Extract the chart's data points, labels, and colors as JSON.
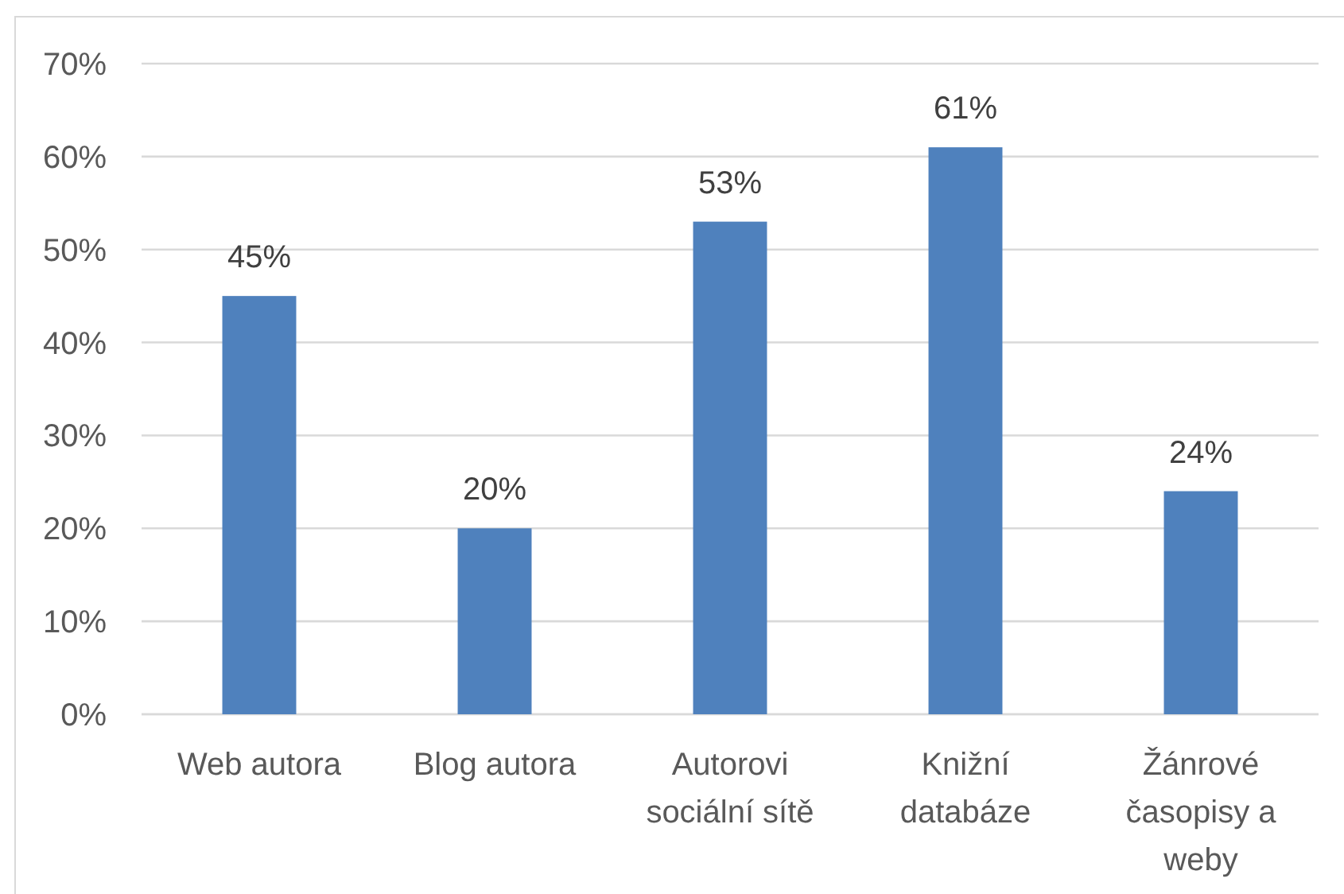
{
  "chart_data": {
    "type": "bar",
    "categories": [
      "Web autora",
      "Blog autora",
      "Autorovi sociální sítě",
      "Knižní databáze",
      "Žánrové časopisy a weby"
    ],
    "values": [
      45,
      20,
      53,
      61,
      24
    ],
    "color": "#4f81bd",
    "ylim": [
      0,
      70
    ],
    "yticks": [
      {
        "value": 0,
        "label": "0%"
      },
      {
        "value": 10,
        "label": "10%"
      },
      {
        "value": 20,
        "label": "20%"
      },
      {
        "value": 30,
        "label": "30%"
      },
      {
        "value": 40,
        "label": "40%"
      },
      {
        "value": 50,
        "label": "50%"
      },
      {
        "value": 60,
        "label": "60%"
      },
      {
        "value": 70,
        "label": "70%"
      }
    ],
    "grid": "y",
    "value_labels": [
      "45%",
      "20%",
      "53%",
      "61%",
      "24%"
    ]
  }
}
